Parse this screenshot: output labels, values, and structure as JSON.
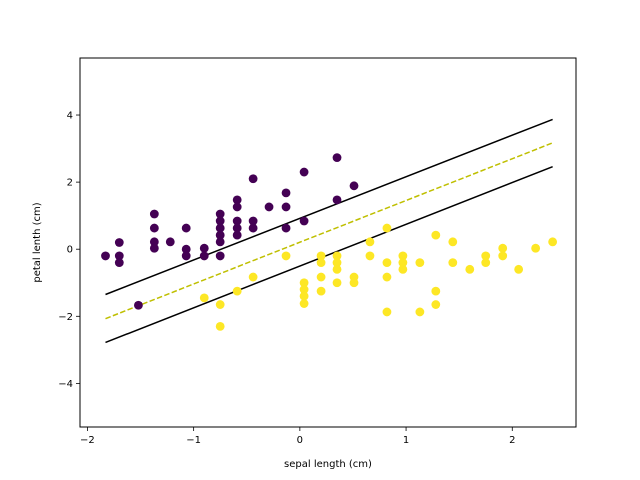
{
  "chart_data": {
    "type": "scatter",
    "title": "",
    "xlabel": "sepal length (cm)",
    "ylabel": "petal lenth (cm)",
    "xlim": [
      -2.07,
      2.6
    ],
    "ylim": [
      -5.3,
      5.7
    ],
    "xticks": [
      -2,
      -1,
      0,
      1,
      2
    ],
    "yticks": [
      -4,
      -2,
      0,
      2,
      4
    ],
    "grid": false,
    "series": [
      {
        "class": 0,
        "color": "#440154",
        "points": [
          [
            -1.83,
            -0.2
          ],
          [
            -1.7,
            0.2
          ],
          [
            -1.7,
            -0.2
          ],
          [
            -1.7,
            -0.4
          ],
          [
            -1.52,
            -1.67
          ],
          [
            -1.37,
            1.05
          ],
          [
            -1.37,
            0.63
          ],
          [
            -1.37,
            0.22
          ],
          [
            -1.37,
            0.03
          ],
          [
            -1.22,
            0.22
          ],
          [
            -1.07,
            0.63
          ],
          [
            -1.07,
            0.0
          ],
          [
            -1.07,
            -0.2
          ],
          [
            -0.9,
            0.03
          ],
          [
            -0.9,
            -0.2
          ],
          [
            -0.75,
            1.05
          ],
          [
            -0.75,
            0.84
          ],
          [
            -0.75,
            0.63
          ],
          [
            -0.75,
            0.42
          ],
          [
            -0.75,
            0.22
          ],
          [
            -0.75,
            -0.2
          ],
          [
            -0.59,
            1.47
          ],
          [
            -0.59,
            1.26
          ],
          [
            -0.59,
            0.84
          ],
          [
            -0.59,
            0.63
          ],
          [
            -0.59,
            0.42
          ],
          [
            -0.44,
            2.1
          ],
          [
            -0.44,
            0.84
          ],
          [
            -0.44,
            0.63
          ],
          [
            -0.29,
            1.26
          ],
          [
            -0.13,
            1.68
          ],
          [
            -0.13,
            1.26
          ],
          [
            -0.13,
            0.63
          ],
          [
            0.04,
            2.3
          ],
          [
            0.04,
            0.84
          ],
          [
            0.35,
            2.73
          ],
          [
            0.35,
            1.47
          ],
          [
            0.51,
            1.89
          ]
        ]
      },
      {
        "class": 1,
        "color": "#fde725",
        "points": [
          [
            -0.9,
            -1.45
          ],
          [
            -0.75,
            -1.65
          ],
          [
            -0.75,
            -2.3
          ],
          [
            -0.59,
            -1.25
          ],
          [
            -0.44,
            -0.83
          ],
          [
            -0.13,
            -0.2
          ],
          [
            0.04,
            -1.0
          ],
          [
            0.04,
            -1.2
          ],
          [
            0.04,
            -1.4
          ],
          [
            0.04,
            -1.62
          ],
          [
            0.2,
            -0.2
          ],
          [
            0.2,
            -0.4
          ],
          [
            0.2,
            -0.83
          ],
          [
            0.2,
            -1.25
          ],
          [
            0.35,
            -0.2
          ],
          [
            0.35,
            -0.4
          ],
          [
            0.35,
            -0.6
          ],
          [
            0.35,
            -1.0
          ],
          [
            0.51,
            -0.83
          ],
          [
            0.51,
            -1.0
          ],
          [
            0.66,
            0.22
          ],
          [
            0.66,
            -0.2
          ],
          [
            0.82,
            0.63
          ],
          [
            0.82,
            -0.4
          ],
          [
            0.82,
            -0.83
          ],
          [
            0.82,
            -1.87
          ],
          [
            0.97,
            -0.2
          ],
          [
            0.97,
            -0.4
          ],
          [
            0.97,
            -0.6
          ],
          [
            1.13,
            -0.4
          ],
          [
            1.13,
            -1.87
          ],
          [
            1.28,
            0.42
          ],
          [
            1.28,
            -1.25
          ],
          [
            1.28,
            -1.65
          ],
          [
            1.44,
            0.22
          ],
          [
            1.44,
            -0.4
          ],
          [
            1.6,
            -0.6
          ],
          [
            1.75,
            -0.2
          ],
          [
            1.75,
            -0.4
          ],
          [
            1.91,
            0.03
          ],
          [
            1.91,
            -0.2
          ],
          [
            2.06,
            -0.6
          ],
          [
            2.22,
            0.03
          ],
          [
            2.38,
            0.22
          ]
        ]
      }
    ],
    "lines": [
      {
        "role": "margin-upper",
        "style": "solid",
        "color": "#000000",
        "x": [
          -1.83,
          2.38
        ],
        "y": [
          -1.35,
          3.87
        ]
      },
      {
        "role": "decision-boundary",
        "style": "dashed",
        "color": "#bfbf00",
        "x": [
          -1.83,
          2.38
        ],
        "y": [
          -2.07,
          3.17
        ]
      },
      {
        "role": "margin-lower",
        "style": "solid",
        "color": "#000000",
        "x": [
          -1.83,
          2.38
        ],
        "y": [
          -2.78,
          2.46
        ]
      }
    ]
  }
}
